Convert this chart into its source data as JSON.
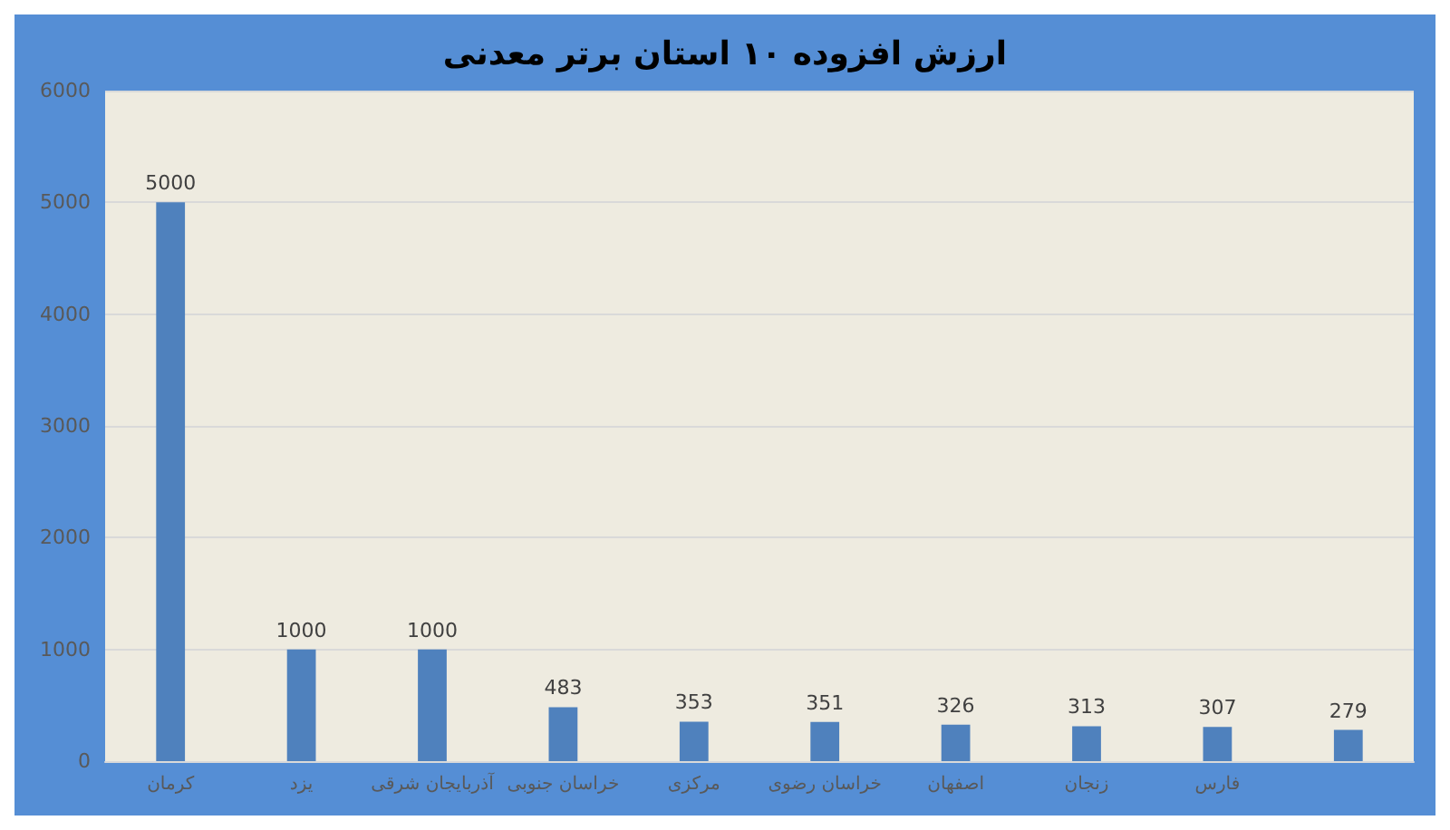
{
  "chart_data": {
    "type": "bar",
    "title": "ارزش افزوده ۱۰ استان برتر معدنی",
    "categories": [
      "کرمان",
      "یزد",
      "آذربایجان شرقی",
      "خراسان جنوبی",
      "مرکزی",
      "خراسان رضوی",
      "اصفهان",
      "زنجان",
      "فارس",
      null
    ],
    "values": [
      5000,
      1000,
      1000,
      483,
      353,
      351,
      326,
      313,
      307,
      279
    ],
    "color": "#4f81bd",
    "ylim": [
      0,
      6000
    ],
    "yticks": [
      0,
      1000,
      2000,
      3000,
      4000,
      5000,
      6000
    ],
    "grid": "y",
    "data_labels": true
  }
}
